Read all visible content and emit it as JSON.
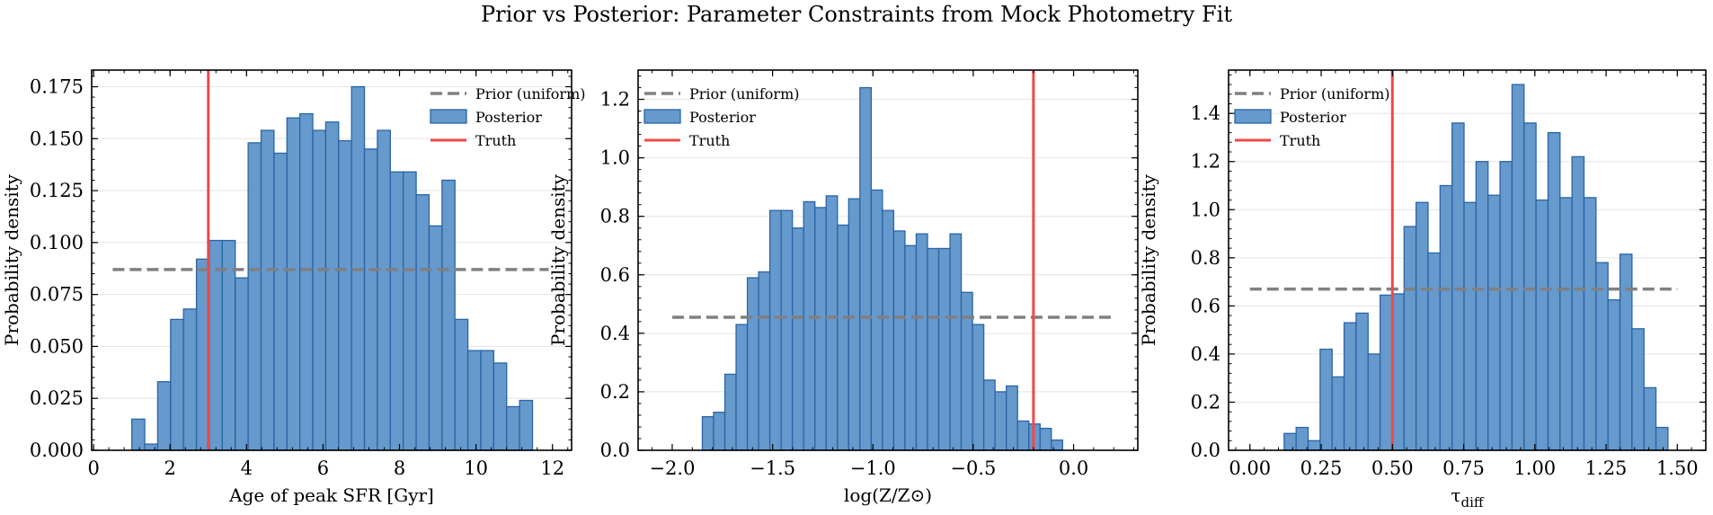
{
  "title": "Prior vs Posterior: Parameter Constraints from Mock Photometry Fit",
  "colors": {
    "posterior_fill": "#6699CC",
    "posterior_edge": "#2A64A6",
    "prior": "#808080",
    "truth": "#F04848",
    "grid": "#E4E4E4"
  },
  "chart_data": [
    {
      "type": "bar",
      "xlabel": "Age of peak SFR [Gyr]",
      "ylabel": "Probability density",
      "xlim": [
        -0.05,
        12.5
      ],
      "ylim": [
        0,
        0.183
      ],
      "xticks": [
        0,
        2,
        4,
        6,
        8,
        10,
        12
      ],
      "xtick_labels": [
        "0",
        "2",
        "4",
        "6",
        "8",
        "10",
        "12"
      ],
      "yticks": [
        0,
        0.025,
        0.05,
        0.075,
        0.1,
        0.125,
        0.15,
        0.175
      ],
      "ytick_labels": [
        "0.000",
        "0.025",
        "0.050",
        "0.075",
        "0.100",
        "0.125",
        "0.150",
        "0.175"
      ],
      "legend": [
        "Prior (uniform)",
        "Posterior",
        "Truth"
      ],
      "prior": {
        "name": "Prior (uniform)",
        "x_range": [
          0.5,
          11.9
        ],
        "value": 0.087
      },
      "truth": {
        "name": "Truth",
        "x": 3.0
      },
      "posterior": {
        "name": "Posterior",
        "bin_start": 1.0,
        "bin_width": 0.338,
        "values": [
          0.015,
          0.003,
          0.033,
          0.063,
          0.068,
          0.092,
          0.101,
          0.101,
          0.083,
          0.148,
          0.154,
          0.143,
          0.16,
          0.162,
          0.154,
          0.158,
          0.149,
          0.175,
          0.145,
          0.154,
          0.134,
          0.134,
          0.123,
          0.108,
          0.13,
          0.063,
          0.048,
          0.048,
          0.042,
          0.021,
          0.024
        ]
      }
    },
    {
      "type": "bar",
      "xlabel": "log(Z/Z⊙)",
      "ylabel": "Probability density",
      "xlim": [
        -2.17,
        0.32
      ],
      "ylim": [
        0,
        1.3
      ],
      "xticks": [
        -2.0,
        -1.5,
        -1.0,
        -0.5,
        0.0
      ],
      "xtick_labels": [
        "−2.0",
        "−1.5",
        "−1.0",
        "−0.5",
        "0.0"
      ],
      "yticks": [
        0,
        0.2,
        0.4,
        0.6,
        0.8,
        1.0,
        1.2
      ],
      "ytick_labels": [
        "0.0",
        "0.2",
        "0.4",
        "0.6",
        "0.8",
        "1.0",
        "1.2"
      ],
      "legend": [
        "Prior (uniform)",
        "Posterior",
        "Truth"
      ],
      "prior": {
        "name": "Prior (uniform)",
        "x_range": [
          -2.0,
          0.2
        ],
        "value": 0.455
      },
      "truth": {
        "name": "Truth",
        "x": -0.2
      },
      "posterior": {
        "name": "Posterior",
        "bin_start": -1.85,
        "bin_width": 0.0561,
        "values": [
          0.115,
          0.13,
          0.26,
          0.43,
          0.59,
          0.61,
          0.82,
          0.82,
          0.76,
          0.85,
          0.83,
          0.87,
          0.77,
          0.86,
          1.24,
          0.89,
          0.82,
          0.75,
          0.7,
          0.74,
          0.69,
          0.69,
          0.74,
          0.54,
          0.43,
          0.24,
          0.2,
          0.22,
          0.1,
          0.09,
          0.075,
          0.035
        ]
      }
    },
    {
      "type": "bar",
      "xlabel": "τdiff",
      "ylabel": "Probability density",
      "xlim": [
        -0.075,
        1.6
      ],
      "ylim": [
        0,
        1.58
      ],
      "xticks": [
        0,
        0.25,
        0.5,
        0.75,
        1.0,
        1.25,
        1.5
      ],
      "xtick_labels": [
        "0.00",
        "0.25",
        "0.50",
        "0.75",
        "1.00",
        "1.25",
        "1.50"
      ],
      "yticks": [
        0,
        0.2,
        0.4,
        0.6,
        0.8,
        1.0,
        1.2,
        1.4
      ],
      "ytick_labels": [
        "0.0",
        "0.2",
        "0.4",
        "0.6",
        "0.8",
        "1.0",
        "1.2",
        "1.4"
      ],
      "legend": [
        "Prior (uniform)",
        "Posterior",
        "Truth"
      ],
      "prior": {
        "name": "Prior (uniform)",
        "x_range": [
          0.0,
          1.5
        ],
        "value": 0.67
      },
      "truth": {
        "name": "Truth",
        "x": 0.5
      },
      "posterior": {
        "name": "Posterior",
        "bin_start": 0.12,
        "bin_width": 0.0421,
        "values": [
          0.07,
          0.095,
          0.04,
          0.42,
          0.305,
          0.53,
          0.57,
          0.4,
          0.645,
          0.65,
          0.93,
          1.03,
          0.82,
          1.1,
          1.36,
          1.03,
          1.2,
          1.06,
          1.2,
          1.52,
          1.36,
          1.04,
          1.32,
          1.05,
          1.22,
          1.05,
          0.78,
          0.625,
          0.815,
          0.505,
          0.26,
          0.095
        ]
      }
    }
  ]
}
